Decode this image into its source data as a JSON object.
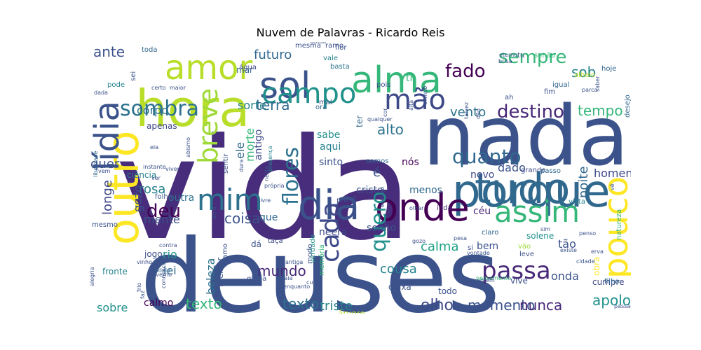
{
  "figure": {
    "title": "Nuvem de Palavras - Ricardo Reis"
  },
  "words": [
    {
      "t": "vida",
      "c": "#472d7b"
    },
    {
      "t": "deuses",
      "c": "#3b528b"
    },
    {
      "t": "nada",
      "c": "#3b528b"
    },
    {
      "t": "porque",
      "c": "#31688e"
    },
    {
      "t": "hora",
      "c": "#b8de29"
    },
    {
      "t": "tudo",
      "c": "#31688e"
    },
    {
      "t": "onde",
      "c": "#440154"
    },
    {
      "t": "dia",
      "c": "#3b528b"
    },
    {
      "t": "alma",
      "c": "#35b779"
    },
    {
      "t": "outro",
      "c": "#fde725"
    },
    {
      "t": "amor",
      "c": "#b8de29"
    },
    {
      "t": "sol",
      "c": "#3b528b"
    },
    {
      "t": "campo",
      "c": "#21918c"
    },
    {
      "t": "mão",
      "c": "#3e4989"
    },
    {
      "t": "lídia",
      "c": "#3b528b"
    },
    {
      "t": "pouco",
      "c": "#fde725"
    },
    {
      "t": "mim",
      "c": "#2c728e"
    },
    {
      "t": "assim",
      "c": "#35b779"
    },
    {
      "t": "breve",
      "c": "#a0da39"
    },
    {
      "t": "sombra",
      "c": "#2c728e"
    },
    {
      "t": "quanto",
      "c": "#31688e"
    },
    {
      "t": "destino",
      "c": "#482878"
    },
    {
      "t": "passa",
      "c": "#482878"
    },
    {
      "t": "quero",
      "c": "#21918c"
    },
    {
      "t": "cada",
      "c": "#3e4989"
    },
    {
      "t": "flores",
      "c": "#2c728e"
    },
    {
      "t": "deu",
      "c": "#440154"
    },
    {
      "t": "fado",
      "c": "#440154"
    },
    {
      "t": "sempre",
      "c": "#35b779"
    },
    {
      "t": "sob",
      "c": "#26828e"
    },
    {
      "t": "futuro",
      "c": "#31688e"
    },
    {
      "t": "ante",
      "c": "#3b528b"
    },
    {
      "t": "terra",
      "c": "#31688e"
    },
    {
      "t": "vento",
      "c": "#2c728e"
    },
    {
      "t": "tempo",
      "c": "#35b779"
    },
    {
      "t": "alto",
      "c": "#2c728e"
    },
    {
      "t": "sorte",
      "c": "#26828e"
    },
    {
      "t": "corpo",
      "c": "#2c728e"
    },
    {
      "t": "dado",
      "c": "#3b528b"
    },
    {
      "t": "noite",
      "c": "#31688e"
    },
    {
      "t": "homens",
      "c": "#3e4989"
    },
    {
      "t": "rosa",
      "c": "#26828e"
    },
    {
      "t": "mundo",
      "c": "#482878"
    },
    {
      "t": "texto",
      "c": "#35b779"
    },
    {
      "t": "texto",
      "c": "#2c728e"
    },
    {
      "t": "triste",
      "c": "#26828e"
    },
    {
      "t": "olho",
      "c": "#3e4989"
    },
    {
      "t": "momento",
      "c": "#3b528b"
    },
    {
      "t": "nunca",
      "c": "#482878"
    },
    {
      "t": "apolo",
      "c": "#21918c"
    },
    {
      "t": "coisa",
      "c": "#3b528b"
    },
    {
      "t": "calma",
      "c": "#1fa187"
    },
    {
      "t": "cousa",
      "c": "#26828e"
    },
    {
      "t": "longe",
      "c": "#3e4989"
    },
    {
      "t": "quer",
      "c": "#3b528b"
    },
    {
      "t": "outra",
      "c": "#2c728e"
    },
    {
      "t": "mente",
      "c": "#3b528b"
    },
    {
      "t": "rio",
      "c": "#21918c"
    },
    {
      "t": "lei",
      "c": "#31688e"
    },
    {
      "t": "beleza",
      "c": "#2c728e"
    },
    {
      "t": "morte",
      "c": "#35b779"
    },
    {
      "t": "cristo",
      "c": "#3b528b"
    },
    {
      "t": "menos",
      "c": "#31688e"
    },
    {
      "t": "ele",
      "c": "#31688e"
    },
    {
      "t": "que",
      "c": "#31688e"
    },
    {
      "t": "gozo",
      "c": "#3b528b"
    },
    {
      "t": "sobre",
      "c": "#21918c"
    },
    {
      "t": "calmo",
      "c": "#440154"
    },
    {
      "t": "tão",
      "c": "#3b528b"
    },
    {
      "t": "onda",
      "c": "#3b528b"
    },
    {
      "t": "bem",
      "c": "#3b528b"
    },
    {
      "t": "sonho",
      "c": "#3b528b"
    },
    {
      "t": "neera",
      "c": "#3e4989"
    },
    {
      "t": "céu",
      "c": "#482878"
    },
    {
      "t": "novo",
      "c": "#3e4989"
    },
    {
      "t": "é",
      "c": "#3b528b"
    },
    {
      "t": "nós",
      "c": "#440154"
    },
    {
      "t": "sabe",
      "c": "#21918c"
    },
    {
      "t": "aqui",
      "c": "#26828e"
    },
    {
      "t": "sinto",
      "c": "#3b528b"
    },
    {
      "t": "antigo",
      "c": "#3e4989"
    },
    {
      "t": "ti",
      "c": "#35b779"
    },
    {
      "t": "hoje",
      "c": "#31688e"
    },
    {
      "t": "mar",
      "c": "#31688e"
    },
    {
      "t": "água",
      "c": "#3e4989"
    },
    {
      "t": "mesma",
      "c": "#3b528b"
    },
    {
      "t": "ramo",
      "c": "#3b528b"
    },
    {
      "t": "toda",
      "c": "#31688e"
    },
    {
      "t": "vale",
      "c": "#26828e"
    },
    {
      "t": "pois",
      "c": "#3b528b"
    },
    {
      "t": "ter",
      "c": "#31688e"
    },
    {
      "t": "somos",
      "c": "#31688e"
    },
    {
      "t": "inda",
      "c": "#482878"
    },
    {
      "t": "vão",
      "c": "#a0da39"
    },
    {
      "t": "leve",
      "c": "#3b528b"
    },
    {
      "t": "vive",
      "c": "#3b528b"
    },
    {
      "t": "cumpre",
      "c": "#3e4989"
    },
    {
      "t": "obra",
      "c": "#fde725"
    },
    {
      "t": "todo",
      "c": "#3b528b"
    },
    {
      "t": "deixa",
      "c": "#3b528b"
    },
    {
      "t": "árvore",
      "c": "#b8de29"
    },
    {
      "t": "natureza",
      "c": "#35b779"
    },
    {
      "t": "solene",
      "c": "#21918c"
    },
    {
      "t": "taça",
      "c": "#3e4989"
    },
    {
      "t": "dá",
      "c": "#3b528b"
    },
    {
      "t": "jogo",
      "c": "#3b528b"
    },
    {
      "t": "fronte",
      "c": "#26828e"
    },
    {
      "t": "melhor",
      "c": "#3b528b"
    },
    {
      "t": "mesmo",
      "c": "#3b528b"
    },
    {
      "t": "ciência",
      "c": "#26828e"
    },
    {
      "t": "pra",
      "c": "#3b528b"
    },
    {
      "t": "grande",
      "c": "#3e4989"
    },
    {
      "t": "passo",
      "c": "#31688e"
    },
    {
      "t": "igual",
      "c": "#31688e"
    },
    {
      "t": "fim",
      "c": "#3b528b"
    },
    {
      "t": "ah",
      "c": "#3b528b"
    },
    {
      "t": "desejo",
      "c": "#31688e"
    },
    {
      "t": "folha",
      "c": "#3b528b"
    },
    {
      "t": "vista",
      "c": "#26828e"
    },
    {
      "t": "claro",
      "c": "#31688e"
    },
    {
      "t": "si",
      "c": "#3b528b"
    },
    {
      "t": "modo",
      "c": "#3b528b"
    },
    {
      "t": "apenas",
      "c": "#3e4989"
    },
    {
      "t": "sei",
      "c": "#3b528b"
    },
    {
      "t": "pode",
      "c": "#26828e"
    },
    {
      "t": "mal",
      "c": "#3b528b"
    },
    {
      "t": "flor",
      "c": "#3b528b"
    },
    {
      "t": "basta",
      "c": "#2c728e"
    },
    {
      "t": "ora",
      "c": "#31688e"
    },
    {
      "t": "alheio",
      "c": "#b8de29"
    },
    {
      "t": "tu",
      "c": "#3b528b"
    },
    {
      "t": "senão",
      "c": "#35b779"
    },
    {
      "t": "sentir",
      "c": "#3b528b"
    },
    {
      "t": "amo",
      "c": "#3b528b"
    },
    {
      "t": "verdade",
      "c": "#21918c"
    },
    {
      "t": "memória",
      "c": "#35b779"
    },
    {
      "t": "glória",
      "c": "#3b528b"
    },
    {
      "t": "filho",
      "c": "#31688e"
    },
    {
      "t": "abismo",
      "c": "#3b528b"
    },
    {
      "t": "presença",
      "c": "#26828e"
    },
    {
      "t": "instante",
      "c": "#3b528b"
    },
    {
      "t": "liberdade",
      "c": "#31688e"
    },
    {
      "t": "odeio",
      "c": "#31688e"
    },
    {
      "t": "vinho",
      "c": "#3b528b"
    },
    {
      "t": "frio",
      "c": "#3b528b"
    },
    {
      "t": "inverno",
      "c": "#3b528b"
    },
    {
      "t": "alegria",
      "c": "#3b528b"
    },
    {
      "t": "connosco",
      "c": "#3b528b"
    },
    {
      "t": "faz",
      "c": "#3b528b"
    },
    {
      "t": "ama",
      "c": "#3b528b"
    },
    {
      "t": "antiga",
      "c": "#3b528b"
    },
    {
      "t": "própria",
      "c": "#3b528b"
    },
    {
      "t": "livre",
      "c": "#3b528b"
    },
    {
      "t": "têm",
      "c": "#3b528b"
    },
    {
      "t": "olhar",
      "c": "#3b528b"
    },
    {
      "t": "pesa",
      "c": "#3b528b"
    },
    {
      "t": "pensamento",
      "c": "#35b779"
    },
    {
      "t": "porém",
      "c": "#3b528b"
    },
    {
      "t": "passado",
      "c": "#3b528b"
    },
    {
      "t": "erva",
      "c": "#3b528b"
    },
    {
      "t": "penso",
      "c": "#3b528b"
    },
    {
      "t": "existe",
      "c": "#3b528b"
    },
    {
      "t": "cidade",
      "c": "#3b528b"
    },
    {
      "t": "dura",
      "c": "#3b528b"
    },
    {
      "t": "nesta",
      "c": "#3b528b"
    },
    {
      "t": "viver",
      "c": "#3b528b"
    },
    {
      "t": "vem",
      "c": "#3b528b"
    },
    {
      "t": "ela",
      "c": "#3b528b"
    },
    {
      "t": "ver",
      "c": "#3b528b"
    },
    {
      "t": "dada",
      "c": "#3b528b"
    },
    {
      "t": "certo",
      "c": "#3b528b"
    },
    {
      "t": "maior",
      "c": "#3b528b"
    },
    {
      "t": "talvez",
      "c": "#3b528b"
    },
    {
      "t": "alta",
      "c": "#3b528b"
    },
    {
      "t": "dão",
      "c": "#3b528b"
    },
    {
      "t": "brisa",
      "c": "#3b528b"
    },
    {
      "t": "eterno",
      "c": "#3b528b"
    },
    {
      "t": "ainda",
      "c": "#3b528b"
    },
    {
      "t": "olimpo",
      "c": "#3b528b"
    },
    {
      "t": "saber",
      "c": "#3b528b"
    },
    {
      "t": "parca",
      "c": "#3b528b"
    },
    {
      "t": "qualquer",
      "c": "#3b528b"
    },
    {
      "t": "cor",
      "c": "#3b528b"
    },
    {
      "t": "esforço",
      "c": "#3b528b"
    },
    {
      "t": "sim",
      "c": "#3b528b"
    },
    {
      "t": "vê",
      "c": "#3b528b"
    },
    {
      "t": "contra",
      "c": "#3b528b"
    },
    {
      "t": "vontade",
      "c": "#3b528b"
    },
    {
      "t": "gozo",
      "c": "#3b528b"
    },
    {
      "t": "enquanto",
      "c": "#3b528b"
    },
    {
      "t": "curso",
      "c": "#3b528b"
    },
    {
      "t": "praia",
      "c": "#3b528b"
    },
    {
      "t": "conhece",
      "c": "#3b528b"
    },
    {
      "t": "forma",
      "c": "#3b528b"
    },
    {
      "t": "verde",
      "c": "#3b528b"
    },
    {
      "t": "homem",
      "c": "#3b528b"
    },
    {
      "t": "tens",
      "c": "#3b528b"
    },
    {
      "t": "acima",
      "c": "#3b528b"
    }
  ]
}
